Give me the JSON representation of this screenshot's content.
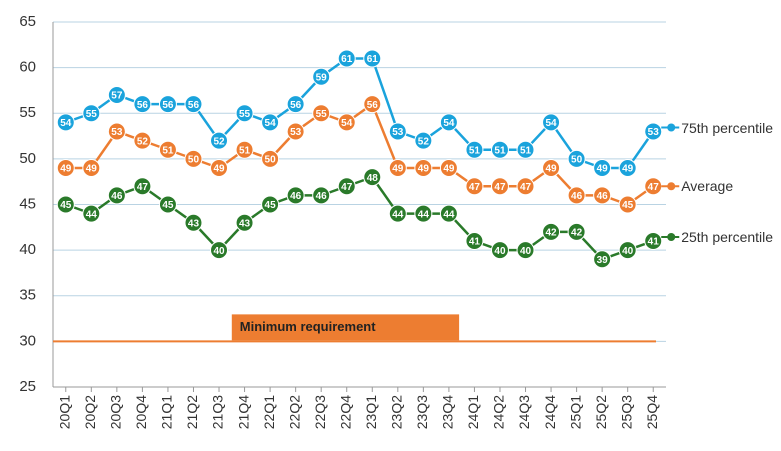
{
  "chart_data": {
    "type": "line",
    "categories": [
      "20Q1",
      "20Q2",
      "20Q3",
      "20Q4",
      "21Q1",
      "21Q2",
      "21Q3",
      "21Q4",
      "22Q1",
      "22Q2",
      "22Q3",
      "22Q4",
      "23Q1",
      "23Q2",
      "23Q3",
      "23Q4",
      "24Q1",
      "24Q2",
      "24Q3",
      "24Q4",
      "25Q1",
      "25Q2",
      "25Q3",
      "25Q4"
    ],
    "series": [
      {
        "name": "75th percentile",
        "color": "#1aa3dc",
        "values": [
          54,
          55,
          57,
          56,
          56,
          56,
          52,
          55,
          54,
          56,
          59,
          61,
          61,
          53,
          52,
          54,
          51,
          51,
          51,
          54,
          50,
          49,
          49,
          53
        ]
      },
      {
        "name": "Average",
        "color": "#ed7d31",
        "values": [
          49,
          49,
          53,
          52,
          51,
          50,
          49,
          51,
          50,
          53,
          55,
          54,
          56,
          49,
          49,
          49,
          47,
          47,
          47,
          49,
          46,
          46,
          45,
          47
        ]
      },
      {
        "name": "25th percentile",
        "color": "#2a7a2a",
        "values": [
          45,
          44,
          46,
          47,
          45,
          43,
          40,
          43,
          45,
          46,
          46,
          47,
          48,
          44,
          44,
          44,
          41,
          40,
          40,
          42,
          42,
          39,
          40,
          41
        ]
      }
    ],
    "reference_line": {
      "value": 30,
      "label": "Minimum requirement",
      "color": "#ed7d31"
    },
    "ylim": [
      25,
      65
    ],
    "yticks": [
      25,
      30,
      35,
      40,
      45,
      50,
      55,
      60,
      65
    ],
    "grid": true
  }
}
